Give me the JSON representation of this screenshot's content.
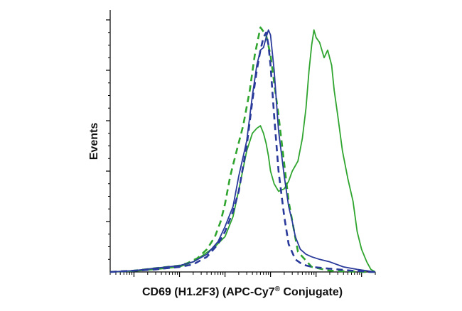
{
  "chart_data": {
    "type": "line",
    "title": "",
    "xlabel": "CD69 (H1.2F3) (APC-Cy7",
    "xlabel_reg": "®",
    "xlabel_suffix": " Conjugate)",
    "ylabel": "Events",
    "x_scale": "log",
    "xlim": [
      0.3,
      200000
    ],
    "ylim": [
      0,
      100
    ],
    "grid": false,
    "legend": "none",
    "series": [
      {
        "color": "#2fa52f",
        "style": "dashed",
        "x": [
          0.3,
          1.0,
          3.0,
          10,
          15,
          25,
          40,
          60,
          80,
          100,
          130,
          180,
          250,
          350,
          450,
          600,
          800,
          1000,
          1500,
          2500,
          4000,
          8000,
          20000,
          100000,
          200000
        ],
        "y": [
          0,
          0.5,
          1.5,
          2.5,
          3.5,
          5.5,
          9,
          14,
          20,
          27,
          38,
          48,
          58,
          72,
          86,
          97,
          94,
          86,
          62,
          28,
          8,
          2,
          0.5,
          0,
          0
        ]
      },
      {
        "color": "#2fa52f",
        "style": "solid",
        "x": [
          0.3,
          1.0,
          3.0,
          10,
          20,
          35,
          60,
          100,
          150,
          220,
          300,
          400,
          500,
          600,
          700,
          800,
          900,
          1000,
          1200,
          1500,
          2000,
          2500,
          3000,
          4000,
          5000,
          6000,
          7000,
          8000,
          9000,
          10000,
          12000,
          15000,
          18000,
          22000,
          25000,
          30000,
          38000,
          50000,
          65000,
          80000,
          100000,
          130000,
          160000,
          200000
        ],
        "y": [
          0,
          0.3,
          1,
          2,
          4,
          7,
          10,
          14,
          22,
          36,
          48,
          55,
          57,
          58,
          55,
          51,
          46,
          40,
          35,
          32,
          33,
          36,
          40,
          44,
          53,
          65,
          80,
          90,
          96,
          93,
          91,
          85,
          88,
          82,
          72,
          62,
          48,
          37,
          28,
          16,
          9,
          4,
          1,
          0
        ]
      },
      {
        "color": "#2a3a9a",
        "style": "dashed",
        "x": [
          0.3,
          1.0,
          3.0,
          10,
          20,
          40,
          70,
          100,
          150,
          200,
          300,
          400,
          500,
          600,
          700,
          800,
          900,
          1000,
          1200,
          1500,
          2000,
          2500,
          3500,
          5000,
          8000,
          15000,
          30000,
          60000,
          100000,
          150000,
          200000
        ],
        "y": [
          0,
          0.5,
          1,
          2,
          3,
          6,
          11,
          16,
          24,
          32,
          50,
          68,
          80,
          88,
          93,
          95,
          90,
          82,
          62,
          40,
          22,
          11,
          5,
          3,
          2,
          1.5,
          1,
          0.5,
          0.3,
          0,
          0
        ]
      },
      {
        "color": "#2a3a9a",
        "style": "solid",
        "x": [
          0.3,
          1.0,
          3.0,
          10,
          20,
          40,
          70,
          100,
          150,
          200,
          300,
          400,
          500,
          600,
          700,
          800,
          900,
          1000,
          1200,
          1500,
          2000,
          2500,
          3000,
          3500,
          4500,
          6000,
          8000,
          12000,
          20000,
          40000,
          80000,
          150000,
          200000
        ],
        "y": [
          0,
          0.5,
          1.5,
          2.5,
          4,
          7,
          12,
          18,
          26,
          38,
          52,
          70,
          82,
          88,
          89,
          93,
          96,
          94,
          80,
          56,
          38,
          26,
          20,
          14,
          9,
          7,
          6,
          5,
          4,
          2,
          1,
          0.3,
          0
        ]
      }
    ]
  }
}
